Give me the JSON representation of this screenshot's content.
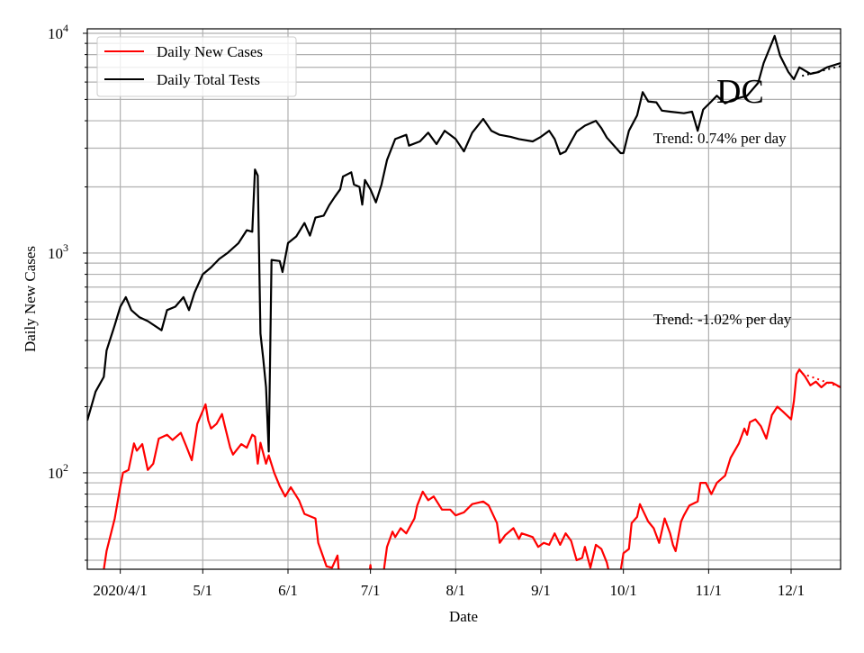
{
  "chart_data": {
    "type": "line",
    "title": "",
    "xlabel": "Date",
    "ylabel": "Daily New Cases",
    "xlim": [
      "2020-03-20",
      "2020-12-19"
    ],
    "ylim": [
      36.4,
      10480
    ],
    "yscale": "log",
    "grid": true,
    "legend_position": "top-left",
    "x_ticks": [
      {
        "date": "2020-04-01",
        "label": "2020/4/1"
      },
      {
        "date": "2020-05-01",
        "label": "5/1"
      },
      {
        "date": "2020-06-01",
        "label": "6/1"
      },
      {
        "date": "2020-07-01",
        "label": "7/1"
      },
      {
        "date": "2020-08-01",
        "label": "8/1"
      },
      {
        "date": "2020-09-01",
        "label": "9/1"
      },
      {
        "date": "2020-10-01",
        "label": "10/1"
      },
      {
        "date": "2020-11-01",
        "label": "11/1"
      },
      {
        "date": "2020-12-01",
        "label": "12/1"
      }
    ],
    "y_ticks": [
      {
        "value": 100,
        "base": "10",
        "exp": "2"
      },
      {
        "value": 1000,
        "base": "10",
        "exp": "3"
      },
      {
        "value": 10000,
        "base": "10",
        "exp": "4"
      }
    ],
    "series": [
      {
        "name": "Daily New Cases",
        "color": "#ff0000",
        "points": [
          [
            "2020-03-25",
            30
          ],
          [
            "2020-03-27",
            44
          ],
          [
            "2020-03-30",
            62
          ],
          [
            "2020-04-01",
            87
          ],
          [
            "2020-04-02",
            100
          ],
          [
            "2020-04-04",
            103
          ],
          [
            "2020-04-06",
            136
          ],
          [
            "2020-04-07",
            126
          ],
          [
            "2020-04-09",
            135
          ],
          [
            "2020-04-11",
            103
          ],
          [
            "2020-04-13",
            110
          ],
          [
            "2020-04-15",
            143
          ],
          [
            "2020-04-18",
            149
          ],
          [
            "2020-04-20",
            141
          ],
          [
            "2020-04-23",
            152
          ],
          [
            "2020-04-25",
            132
          ],
          [
            "2020-04-27",
            114
          ],
          [
            "2020-04-29",
            167
          ],
          [
            "2020-05-02",
            205
          ],
          [
            "2020-05-03",
            173
          ],
          [
            "2020-05-04",
            159
          ],
          [
            "2020-05-06",
            167
          ],
          [
            "2020-05-08",
            185
          ],
          [
            "2020-05-09",
            164
          ],
          [
            "2020-05-11",
            130
          ],
          [
            "2020-05-12",
            121
          ],
          [
            "2020-05-15",
            135
          ],
          [
            "2020-05-17",
            130
          ],
          [
            "2020-05-19",
            149
          ],
          [
            "2020-05-20",
            146
          ],
          [
            "2020-05-21",
            110
          ],
          [
            "2020-05-22",
            137
          ],
          [
            "2020-05-24",
            110
          ],
          [
            "2020-05-25",
            120
          ],
          [
            "2020-05-27",
            100
          ],
          [
            "2020-05-29",
            87
          ],
          [
            "2020-05-31",
            78
          ],
          [
            "2020-06-02",
            86
          ],
          [
            "2020-06-05",
            75
          ],
          [
            "2020-06-07",
            65
          ],
          [
            "2020-06-11",
            62
          ],
          [
            "2020-06-12",
            48
          ],
          [
            "2020-06-15",
            37.5
          ],
          [
            "2020-06-17",
            37
          ],
          [
            "2020-06-19",
            42
          ],
          [
            "2020-06-20",
            30
          ],
          [
            "2020-06-30",
            30
          ],
          [
            "2020-07-01",
            38
          ],
          [
            "2020-07-02",
            30
          ],
          [
            "2020-07-05",
            30
          ],
          [
            "2020-07-07",
            46
          ],
          [
            "2020-07-09",
            54
          ],
          [
            "2020-07-10",
            51
          ],
          [
            "2020-07-12",
            56
          ],
          [
            "2020-07-14",
            53
          ],
          [
            "2020-07-17",
            62
          ],
          [
            "2020-07-18",
            71
          ],
          [
            "2020-07-20",
            82
          ],
          [
            "2020-07-22",
            75
          ],
          [
            "2020-07-24",
            78
          ],
          [
            "2020-07-27",
            68
          ],
          [
            "2020-07-30",
            68
          ],
          [
            "2020-08-01",
            64
          ],
          [
            "2020-08-04",
            66
          ],
          [
            "2020-08-07",
            72
          ],
          [
            "2020-08-11",
            74
          ],
          [
            "2020-08-13",
            71
          ],
          [
            "2020-08-16",
            59
          ],
          [
            "2020-08-17",
            48
          ],
          [
            "2020-08-19",
            52
          ],
          [
            "2020-08-22",
            56
          ],
          [
            "2020-08-24",
            50
          ],
          [
            "2020-08-25",
            53
          ],
          [
            "2020-08-27",
            52
          ],
          [
            "2020-08-29",
            51
          ],
          [
            "2020-08-31",
            46
          ],
          [
            "2020-09-02",
            48
          ],
          [
            "2020-09-04",
            47
          ],
          [
            "2020-09-06",
            53
          ],
          [
            "2020-09-08",
            47
          ],
          [
            "2020-09-10",
            53
          ],
          [
            "2020-09-12",
            49
          ],
          [
            "2020-09-14",
            40
          ],
          [
            "2020-09-16",
            41
          ],
          [
            "2020-09-17",
            46
          ],
          [
            "2020-09-19",
            37
          ],
          [
            "2020-09-21",
            47
          ],
          [
            "2020-09-23",
            45
          ],
          [
            "2020-09-25",
            39
          ],
          [
            "2020-09-27",
            30
          ],
          [
            "2020-09-29",
            30
          ],
          [
            "2020-10-01",
            43
          ],
          [
            "2020-10-03",
            45
          ],
          [
            "2020-10-04",
            59
          ],
          [
            "2020-10-06",
            63
          ],
          [
            "2020-10-07",
            72
          ],
          [
            "2020-10-10",
            60
          ],
          [
            "2020-10-12",
            56
          ],
          [
            "2020-10-14",
            48
          ],
          [
            "2020-10-16",
            62
          ],
          [
            "2020-10-18",
            53
          ],
          [
            "2020-10-19",
            47
          ],
          [
            "2020-10-20",
            44
          ],
          [
            "2020-10-22",
            60
          ],
          [
            "2020-10-23",
            64
          ],
          [
            "2020-10-25",
            71
          ],
          [
            "2020-10-28",
            74
          ],
          [
            "2020-10-29",
            90
          ],
          [
            "2020-10-31",
            90
          ],
          [
            "2020-11-02",
            80
          ],
          [
            "2020-11-04",
            90
          ],
          [
            "2020-11-07",
            97
          ],
          [
            "2020-11-09",
            117
          ],
          [
            "2020-11-12",
            136
          ],
          [
            "2020-11-14",
            159
          ],
          [
            "2020-11-15",
            149
          ],
          [
            "2020-11-16",
            170
          ],
          [
            "2020-11-18",
            175
          ],
          [
            "2020-11-20",
            163
          ],
          [
            "2020-11-22",
            143
          ],
          [
            "2020-11-24",
            183
          ],
          [
            "2020-11-26",
            200
          ],
          [
            "2020-11-28",
            190
          ],
          [
            "2020-12-01",
            175
          ],
          [
            "2020-12-02",
            212
          ],
          [
            "2020-12-03",
            281
          ],
          [
            "2020-12-04",
            295
          ],
          [
            "2020-12-06",
            275
          ],
          [
            "2020-12-08",
            250
          ],
          [
            "2020-12-10",
            260
          ],
          [
            "2020-12-12",
            245
          ],
          [
            "2020-12-14",
            257
          ],
          [
            "2020-12-16",
            257
          ],
          [
            "2020-12-19",
            245
          ]
        ],
        "trend": {
          "label": "Trend: -1.02% per day",
          "pct_per_day": -1.02,
          "start": [
            "2020-12-05",
            283
          ],
          "end": [
            "2020-12-19",
            245
          ]
        }
      },
      {
        "name": "Daily Total Tests",
        "color": "#000000",
        "points": [
          [
            "2020-03-20",
            173
          ],
          [
            "2020-03-23",
            234
          ],
          [
            "2020-03-26",
            273
          ],
          [
            "2020-03-27",
            360
          ],
          [
            "2020-03-30",
            470
          ],
          [
            "2020-04-01",
            570
          ],
          [
            "2020-04-03",
            630
          ],
          [
            "2020-04-05",
            550
          ],
          [
            "2020-04-08",
            510
          ],
          [
            "2020-04-11",
            490
          ],
          [
            "2020-04-16",
            445
          ],
          [
            "2020-04-18",
            550
          ],
          [
            "2020-04-21",
            570
          ],
          [
            "2020-04-24",
            630
          ],
          [
            "2020-04-26",
            550
          ],
          [
            "2020-04-28",
            660
          ],
          [
            "2020-05-01",
            800
          ],
          [
            "2020-05-04",
            860
          ],
          [
            "2020-05-07",
            940
          ],
          [
            "2020-05-10",
            1000
          ],
          [
            "2020-05-14",
            1110
          ],
          [
            "2020-05-17",
            1270
          ],
          [
            "2020-05-19",
            1250
          ],
          [
            "2020-05-20",
            2400
          ],
          [
            "2020-05-21",
            2250
          ],
          [
            "2020-05-22",
            430
          ],
          [
            "2020-05-23",
            330
          ],
          [
            "2020-05-24",
            245
          ],
          [
            "2020-05-25",
            125
          ],
          [
            "2020-05-26",
            930
          ],
          [
            "2020-05-29",
            920
          ],
          [
            "2020-05-30",
            820
          ],
          [
            "2020-06-01",
            1110
          ],
          [
            "2020-06-04",
            1190
          ],
          [
            "2020-06-07",
            1370
          ],
          [
            "2020-06-09",
            1200
          ],
          [
            "2020-06-11",
            1450
          ],
          [
            "2020-06-14",
            1480
          ],
          [
            "2020-06-16",
            1650
          ],
          [
            "2020-06-18",
            1800
          ],
          [
            "2020-06-20",
            1950
          ],
          [
            "2020-06-21",
            2230
          ],
          [
            "2020-06-24",
            2330
          ],
          [
            "2020-06-25",
            2050
          ],
          [
            "2020-06-27",
            2000
          ],
          [
            "2020-06-28",
            1660
          ],
          [
            "2020-06-29",
            2150
          ],
          [
            "2020-07-01",
            1950
          ],
          [
            "2020-07-03",
            1700
          ],
          [
            "2020-07-05",
            2050
          ],
          [
            "2020-07-07",
            2650
          ],
          [
            "2020-07-10",
            3300
          ],
          [
            "2020-07-14",
            3450
          ],
          [
            "2020-07-15",
            3080
          ],
          [
            "2020-07-19",
            3220
          ],
          [
            "2020-07-22",
            3530
          ],
          [
            "2020-07-25",
            3130
          ],
          [
            "2020-07-28",
            3600
          ],
          [
            "2020-07-30",
            3450
          ],
          [
            "2020-08-01",
            3300
          ],
          [
            "2020-08-04",
            2900
          ],
          [
            "2020-08-07",
            3530
          ],
          [
            "2020-08-11",
            4080
          ],
          [
            "2020-08-14",
            3600
          ],
          [
            "2020-08-17",
            3450
          ],
          [
            "2020-08-21",
            3380
          ],
          [
            "2020-08-24",
            3300
          ],
          [
            "2020-08-29",
            3220
          ],
          [
            "2020-09-01",
            3380
          ],
          [
            "2020-09-04",
            3600
          ],
          [
            "2020-09-06",
            3300
          ],
          [
            "2020-09-08",
            2820
          ],
          [
            "2020-09-10",
            2900
          ],
          [
            "2020-09-14",
            3570
          ],
          [
            "2020-09-17",
            3800
          ],
          [
            "2020-09-21",
            4000
          ],
          [
            "2020-09-23",
            3700
          ],
          [
            "2020-09-25",
            3350
          ],
          [
            "2020-09-30",
            2850
          ],
          [
            "2020-10-01",
            2850
          ],
          [
            "2020-10-03",
            3600
          ],
          [
            "2020-10-06",
            4230
          ],
          [
            "2020-10-08",
            5400
          ],
          [
            "2020-10-10",
            4900
          ],
          [
            "2020-10-13",
            4850
          ],
          [
            "2020-10-15",
            4450
          ],
          [
            "2020-10-18",
            4400
          ],
          [
            "2020-10-23",
            4330
          ],
          [
            "2020-10-26",
            4400
          ],
          [
            "2020-10-28",
            3600
          ],
          [
            "2020-10-30",
            4500
          ],
          [
            "2020-11-02",
            4900
          ],
          [
            "2020-11-04",
            5200
          ],
          [
            "2020-11-07",
            4800
          ],
          [
            "2020-11-10",
            5000
          ],
          [
            "2020-11-15",
            5200
          ],
          [
            "2020-11-19",
            5950
          ],
          [
            "2020-11-21",
            7320
          ],
          [
            "2020-11-25",
            9730
          ],
          [
            "2020-11-27",
            7900
          ],
          [
            "2020-11-30",
            6660
          ],
          [
            "2020-12-02",
            6180
          ],
          [
            "2020-12-04",
            7000
          ],
          [
            "2020-12-08",
            6540
          ],
          [
            "2020-12-11",
            6660
          ],
          [
            "2020-12-14",
            7000
          ],
          [
            "2020-12-19",
            7320
          ]
        ],
        "trend": {
          "label": "Trend: 0.74% per day",
          "pct_per_day": 0.74,
          "start": [
            "2020-12-05",
            6400
          ],
          "end": [
            "2020-12-19",
            7100
          ]
        }
      }
    ],
    "annotations": [
      {
        "text": "DC"
      },
      {
        "text": "Trend: 0.74% per day"
      },
      {
        "text": "Trend: -1.02% per day"
      }
    ]
  }
}
